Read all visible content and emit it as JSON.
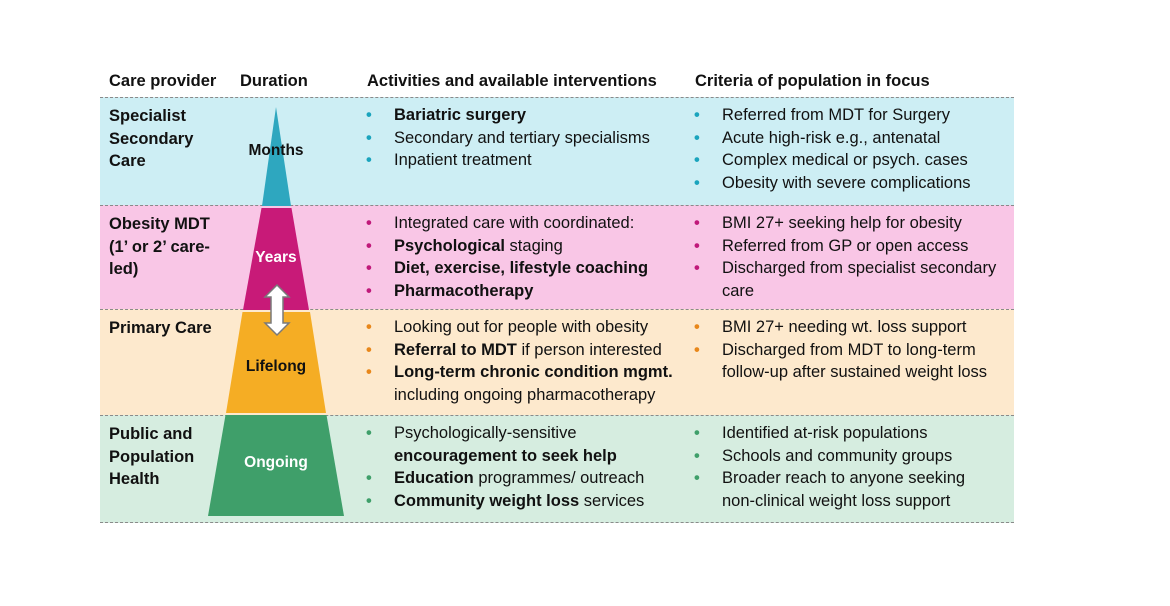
{
  "headers": {
    "care_provider": "Care provider",
    "duration": "Duration",
    "activities": "Activities and available interventions",
    "criteria": "Criteria of population in focus"
  },
  "rows": [
    {
      "provider": [
        "Specialist",
        "Secondary",
        "Care"
      ],
      "duration": "Months",
      "activities": [
        {
          "bold": "Bariatric surgery",
          "rest": ""
        },
        {
          "bold": "",
          "rest": "Secondary and tertiary specialisms"
        },
        {
          "bold": "",
          "rest": "Inpatient treatment"
        }
      ],
      "criteria": [
        "Referred from MDT for Surgery",
        "Acute high-risk e.g., antenatal",
        "Complex medical or psych. cases",
        "Obesity with severe complications"
      ]
    },
    {
      "provider": [
        "Obesity MDT",
        "(1’ or 2’ care-",
        "led)"
      ],
      "duration": "Years",
      "activities": [
        {
          "bold": "",
          "rest": "Integrated care with coordinated:"
        },
        {
          "bold": "Psychological",
          "rest": " staging"
        },
        {
          "bold": "Diet, exercise, lifestyle coaching",
          "rest": ""
        },
        {
          "bold": "Pharmacotherapy",
          "rest": ""
        }
      ],
      "criteria": [
        "BMI 27+ seeking help for obesity",
        "Referred from GP or open access",
        "Discharged from specialist secondary",
        "care"
      ]
    },
    {
      "provider": [
        "Primary Care"
      ],
      "duration": "Lifelong",
      "activities": [
        {
          "bold": "",
          "rest": "Looking out for people with obesity"
        },
        {
          "bold": "Referral to MDT",
          "rest": " if person interested"
        },
        {
          "bold": "Long-term chronic condition mgmt.",
          "rest": ""
        },
        {
          "bold": "",
          "rest": "including ongoing pharmacotherapy"
        }
      ],
      "criteria": [
        "BMI 27+ needing wt. loss support",
        "Discharged from MDT to long-term",
        "follow-up after sustained weight loss"
      ]
    },
    {
      "provider": [
        "Public and",
        "Population",
        "Health"
      ],
      "duration": "Ongoing",
      "activities": [
        {
          "bold": "",
          "rest": "Psychologically-sensitive"
        },
        {
          "bold": "encouragement to seek help",
          "rest": ""
        },
        {
          "bold": "Education",
          "rest": " programmes/ outreach"
        },
        {
          "bold": "Community weight loss",
          "rest": " services"
        }
      ],
      "criteria": [
        "Identified at-risk populations",
        "Schools and community groups",
        "Broader reach to anyone seeking",
        "non-clinical weight loss support"
      ]
    }
  ],
  "colors": {
    "row_bg": [
      "#cdeef4",
      "#f9c6e6",
      "#fde9cd",
      "#d6ede0"
    ],
    "pyramid": [
      "#2ea7bf",
      "#c81a78",
      "#f5ad24",
      "#3f9f6a"
    ],
    "bullets": [
      "#1aa4bd",
      "#c0197a",
      "#e8871a",
      "#3f9f6a"
    ]
  },
  "bullet_glyph": "•"
}
